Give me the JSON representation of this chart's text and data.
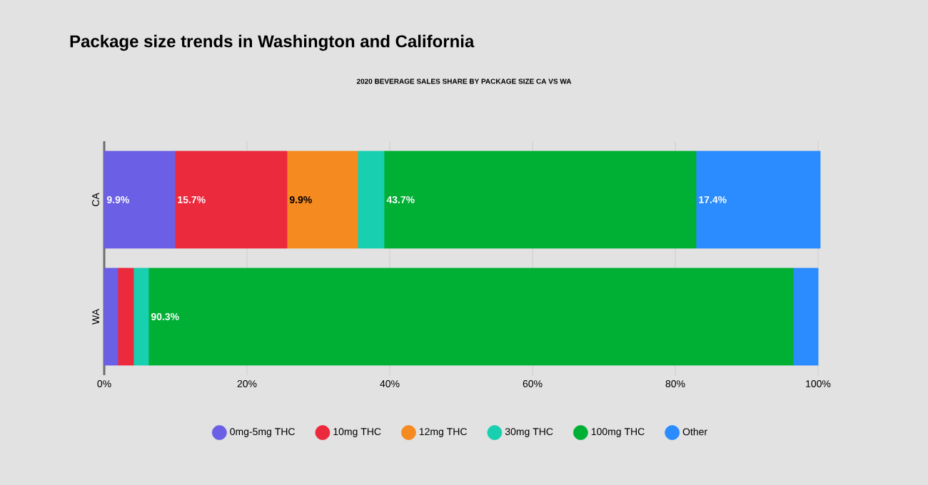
{
  "chart_data": {
    "type": "bar",
    "orientation": "horizontal",
    "stacked": true,
    "title": "Package size trends in Washington and California",
    "subtitle": "2020 BEVERAGE SALES SHARE BY PACKAGE SIZE CA VS WA",
    "categories": [
      "CA",
      "WA"
    ],
    "series": [
      {
        "name": "0mg-5mg THC",
        "color": "#6b5fe6",
        "values": [
          9.9,
          1.9
        ],
        "value_labels": [
          "9.9%",
          null
        ]
      },
      {
        "name": "10mg THC",
        "color": "#ec2a3e",
        "values": [
          15.7,
          2.2
        ],
        "value_labels": [
          "15.7%",
          null
        ]
      },
      {
        "name": "12mg THC",
        "color": "#f58a20",
        "values": [
          9.9,
          0
        ],
        "value_labels": [
          "9.9%",
          null
        ]
      },
      {
        "name": "30mg THC",
        "color": "#18cfb0",
        "values": [
          3.7,
          2.1
        ],
        "value_labels": [
          null,
          null
        ]
      },
      {
        "name": "100mg THC",
        "color": "#00b035",
        "values": [
          43.7,
          90.3
        ],
        "value_labels": [
          "43.7%",
          "90.3%"
        ]
      },
      {
        "name": "Other",
        "color": "#2a8cff",
        "values": [
          17.4,
          3.5
        ],
        "value_labels": [
          "17.4%",
          null
        ]
      }
    ],
    "xlim": [
      0,
      100
    ],
    "xticks": [
      {
        "value": 0,
        "label": "0%"
      },
      {
        "value": 20,
        "label": "20%"
      },
      {
        "value": 40,
        "label": "40%"
      },
      {
        "value": 60,
        "label": "60%"
      },
      {
        "value": 80,
        "label": "80%"
      },
      {
        "value": 100,
        "label": "100%"
      }
    ],
    "grid": "x",
    "legend": "bottom",
    "marker": "circle"
  }
}
